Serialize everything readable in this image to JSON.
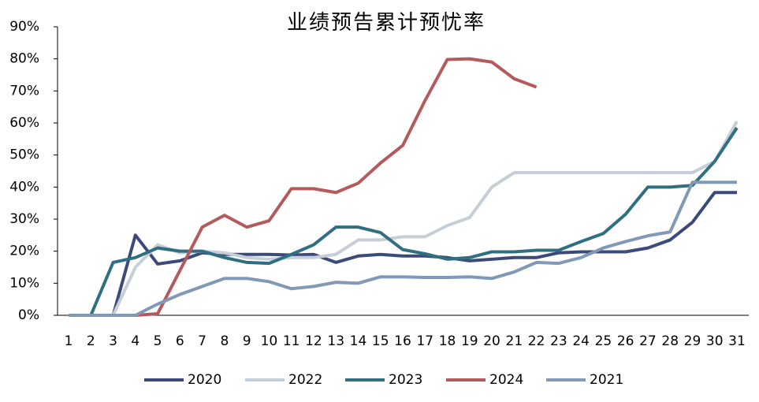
{
  "chart_data": {
    "type": "line",
    "title": "业绩预告累计预忧率",
    "categories": [
      "1",
      "2",
      "3",
      "4",
      "5",
      "6",
      "7",
      "8",
      "9",
      "10",
      "11",
      "12",
      "13",
      "14",
      "15",
      "16",
      "17",
      "18",
      "19",
      "20",
      "21",
      "22",
      "23",
      "24",
      "25",
      "26",
      "27",
      "28",
      "29",
      "30",
      "31"
    ],
    "series": [
      {
        "name": "2020",
        "color": "#3b4a7b",
        "values": [
          0,
          0,
          0,
          25,
          16,
          17,
          19.5,
          19,
          19,
          19,
          18.8,
          19,
          16.5,
          18.5,
          19,
          18.5,
          18.5,
          18,
          17,
          17.5,
          18,
          18,
          19.5,
          19.8,
          19.8,
          19.8,
          21,
          23.5,
          29,
          38.3,
          38.3
        ]
      },
      {
        "name": "2022",
        "color": "#c6ced8",
        "values": [
          0,
          0,
          0,
          15,
          22,
          19.5,
          20,
          19.5,
          18,
          17.5,
          18,
          18,
          19,
          23.5,
          23.5,
          24.5,
          24.5,
          28,
          30.5,
          40,
          44.5,
          44.5,
          44.5,
          44.5,
          44.5,
          44.5,
          44.5,
          44.5,
          44.5,
          48,
          60.5
        ]
      },
      {
        "name": "2023",
        "color": "#2f6f81",
        "values": [
          0,
          0,
          16.5,
          18,
          21,
          20,
          20,
          18,
          16.5,
          16.2,
          19,
          22,
          27.5,
          27.5,
          25.8,
          20.5,
          19.2,
          17.5,
          18,
          19.8,
          19.8,
          20.3,
          20.3,
          23,
          25.5,
          31.5,
          40,
          40,
          40.5,
          48,
          58.5
        ]
      },
      {
        "name": "2024",
        "color": "#b55a5c",
        "values": [
          0,
          0,
          0,
          0,
          0.5,
          14,
          27.5,
          31.2,
          27.5,
          29.5,
          39.5,
          39.5,
          38.3,
          41.2,
          47.5,
          53,
          67,
          79.8,
          80,
          79,
          73.8,
          71.2,
          null,
          null,
          null,
          null,
          null,
          null,
          null,
          null,
          null
        ]
      },
      {
        "name": "2021",
        "color": "#8099b6",
        "values": [
          0,
          0,
          0,
          0,
          3.5,
          6.5,
          9,
          11.5,
          11.5,
          10.5,
          8.3,
          9,
          10.3,
          10,
          12,
          12,
          11.8,
          11.8,
          12,
          11.5,
          13.5,
          16.5,
          16.2,
          18,
          21,
          23,
          24.8,
          26,
          41.5,
          41.5,
          41.5
        ]
      }
    ],
    "ylim": [
      0,
      90
    ],
    "yticks": [
      {
        "value": 0,
        "label": "0%"
      },
      {
        "value": 10,
        "label": "10%"
      },
      {
        "value": 20,
        "label": "20%"
      },
      {
        "value": 30,
        "label": "30%"
      },
      {
        "value": 40,
        "label": "40%"
      },
      {
        "value": 50,
        "label": "50%"
      },
      {
        "value": 60,
        "label": "60%"
      },
      {
        "value": 70,
        "label": "70%"
      },
      {
        "value": 80,
        "label": "80%"
      },
      {
        "value": 90,
        "label": "90%"
      }
    ],
    "legend": "bottom"
  }
}
